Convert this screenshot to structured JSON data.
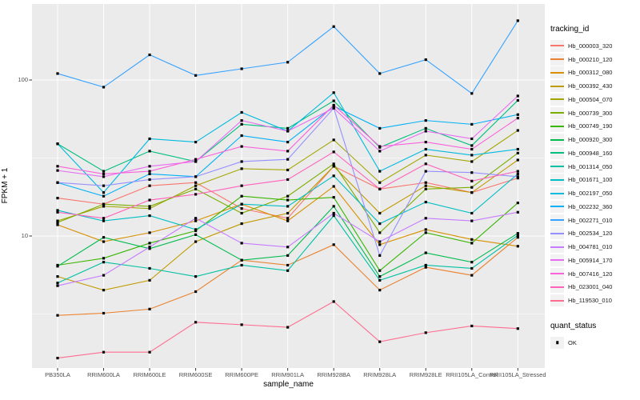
{
  "chart_data": {
    "type": "line",
    "title": "",
    "xlabel": "sample_name",
    "ylabel": "FPKM + 1",
    "yscale": "log10",
    "ylim": [
      1.4,
      310
    ],
    "y_ticks": [
      10,
      100
    ],
    "y_minor_ticks": [
      3.162,
      31.62
    ],
    "grid": true,
    "legend_position": "right",
    "panel_background": "#EBEBEB",
    "gridline_color": "#FFFFFF",
    "marker": "black-square",
    "categories": [
      "PB350LA",
      "RRIM600LA",
      "RRIM600LE",
      "RRIM600SE",
      "RRIM600PE",
      "RRIM901LA",
      "RRIM928BA",
      "RRIM928LA",
      "RRIM928LE",
      "RRII105LA_Control",
      "RRII105LA_Stressed"
    ],
    "series": [
      {
        "name": "Hb_000003_320",
        "color": "#F8766D",
        "values": [
          17.5,
          16,
          21,
          22,
          15,
          13,
          28,
          20,
          22,
          19,
          23.5
        ]
      },
      {
        "name": "Hb_000210_120",
        "color": "#EA8331",
        "values": [
          3.1,
          3.2,
          3.4,
          4.4,
          7.0,
          6.5,
          8.8,
          4.5,
          6.3,
          5.6,
          9.8
        ]
      },
      {
        "name": "Hb_000312_080",
        "color": "#D89000",
        "values": [
          11.8,
          9.2,
          10.5,
          12.5,
          16,
          12.5,
          20.8,
          8.8,
          11,
          9.5,
          8.6
        ]
      },
      {
        "name": "Hb_000392_430",
        "color": "#C09B00",
        "values": [
          5.5,
          4.5,
          5.2,
          9.2,
          12,
          14,
          28,
          14,
          21,
          19,
          30.7
        ]
      },
      {
        "name": "Hb_000504_070",
        "color": "#A3A500",
        "values": [
          12.5,
          15.5,
          15,
          21,
          27,
          26.5,
          41.3,
          22,
          33,
          30,
          47.5
        ]
      },
      {
        "name": "Hb_000739_300",
        "color": "#7CAE00",
        "values": [
          12.2,
          16,
          15.5,
          20,
          14,
          18,
          29,
          10.5,
          20,
          20.5,
          34
        ]
      },
      {
        "name": "Hb_000749_190",
        "color": "#39B600",
        "values": [
          6.5,
          7.2,
          9.0,
          10.8,
          18,
          17,
          17.7,
          6.0,
          10.5,
          9.0,
          16.3
        ]
      },
      {
        "name": "Hb_000920_300",
        "color": "#00BB4E",
        "values": [
          6.4,
          9.8,
          8.3,
          10.2,
          7.0,
          7.5,
          15.5,
          5.5,
          7.8,
          6.8,
          10.4
        ]
      },
      {
        "name": "Hb_000948_160",
        "color": "#00BF7D",
        "values": [
          39,
          26,
          35,
          30,
          52,
          49,
          73.5,
          37,
          49,
          38,
          74
        ]
      },
      {
        "name": "Hb_001314_050",
        "color": "#00C1A3",
        "values": [
          5.0,
          6.8,
          6.2,
          5.5,
          6.5,
          6.0,
          13.5,
          5.2,
          6.5,
          6.2,
          10.1
        ]
      },
      {
        "name": "Hb_001671_100",
        "color": "#00BFC4",
        "values": [
          14.6,
          12.5,
          13.5,
          11,
          16,
          15.5,
          24.3,
          12,
          16.5,
          14,
          25
        ]
      },
      {
        "name": "Hb_002197_050",
        "color": "#00BAE0",
        "values": [
          39,
          19,
          42,
          40,
          62,
          47,
          83,
          26,
          36,
          33,
          36
        ]
      },
      {
        "name": "Hb_002232_360",
        "color": "#00B0F6",
        "values": [
          22,
          18,
          25,
          24,
          44,
          40,
          68,
          49,
          55,
          52,
          60
        ]
      },
      {
        "name": "Hb_002271_010",
        "color": "#35A2FF",
        "values": [
          110,
          90,
          145,
          107,
          118,
          130,
          220,
          110,
          135,
          82,
          240
        ]
      },
      {
        "name": "Hb_002534_120",
        "color": "#9590FF",
        "values": [
          22,
          21,
          23,
          24,
          30,
          31,
          66,
          7.5,
          26,
          25.5,
          24
        ]
      },
      {
        "name": "Hb_004781_010",
        "color": "#C77CFF",
        "values": [
          4.8,
          5.6,
          8.5,
          13,
          9.0,
          8.5,
          14.0,
          9.2,
          13,
          12.5,
          14.2
        ]
      },
      {
        "name": "Hb_005914_170",
        "color": "#E76BF3",
        "values": [
          26.3,
          24,
          28,
          30,
          55,
          47,
          66,
          35,
          47,
          42,
          79
        ]
      },
      {
        "name": "Hb_007416_120",
        "color": "#FA62DB",
        "values": [
          28,
          25,
          26,
          31,
          37.5,
          35,
          69,
          37.5,
          40,
          36,
          57
        ]
      },
      {
        "name": "Hb_023001_040",
        "color": "#FF62BC",
        "values": [
          14.2,
          13,
          17,
          18.5,
          21,
          23,
          34.6,
          20,
          29,
          22.5,
          26
        ]
      },
      {
        "name": "Hb_119530_010",
        "color": "#FF6C90",
        "values": [
          1.65,
          1.8,
          1.8,
          2.8,
          2.7,
          2.6,
          3.8,
          2.1,
          2.4,
          2.65,
          2.55
        ]
      }
    ],
    "legend_title": "tracking_id",
    "legend2_title": "quant_status",
    "legend2_entries": [
      "OK"
    ]
  }
}
